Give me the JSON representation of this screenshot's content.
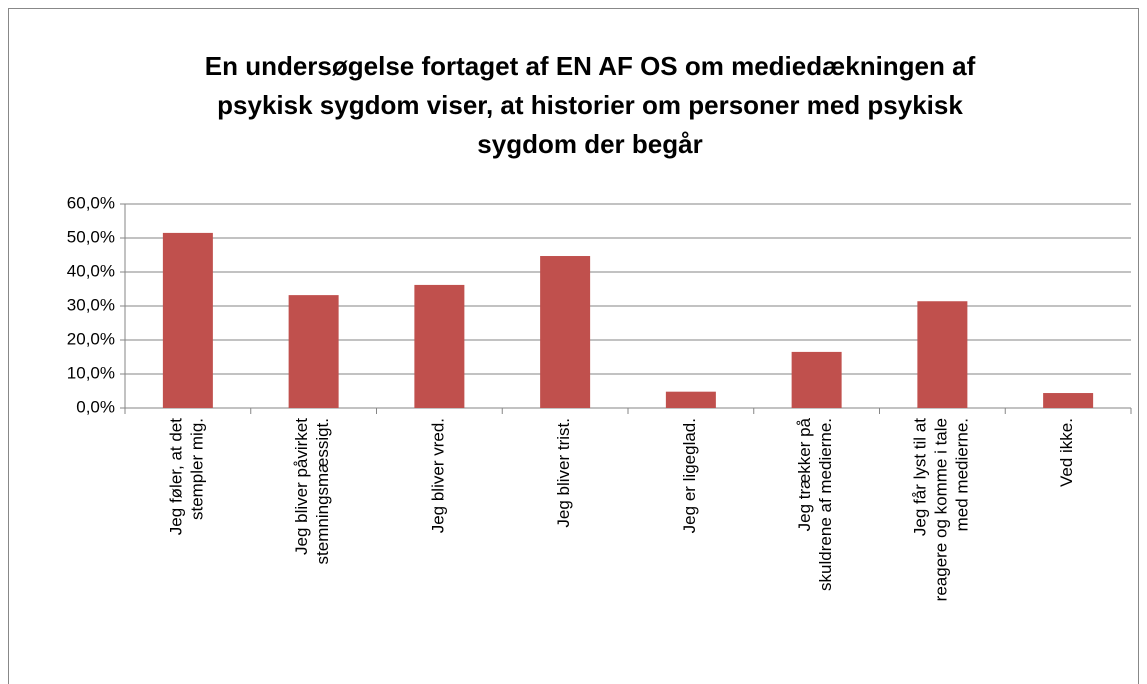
{
  "chart_data": {
    "type": "bar",
    "title": "En undersøgelse fortaget af EN AF OS om mediedækningen af psykisk sygdom viser, at historier om personer med psykisk sygdom der begår",
    "categories": [
      "Jeg føler, at det stempler mig.",
      "Jeg bliver påvirket stemningsmæssigt.",
      "Jeg bliver vred.",
      "Jeg bliver trist.",
      "Jeg er ligeglad.",
      "Jeg trækker på skuldrene af medierne.",
      "Jeg får lyst til at reagere og komme i tale med medierne.",
      "Ved ikke."
    ],
    "values": [
      51.5,
      33.2,
      36.2,
      44.7,
      4.8,
      16.5,
      31.4,
      4.4
    ],
    "color": "#c0504d",
    "ylim": [
      0,
      60
    ],
    "yticks": [
      {
        "value": 0,
        "label": "0,0%"
      },
      {
        "value": 10,
        "label": "10,0%"
      },
      {
        "value": 20,
        "label": "20,0%"
      },
      {
        "value": 30,
        "label": "30,0%"
      },
      {
        "value": 40,
        "label": "40,0%"
      },
      {
        "value": 50,
        "label": "50,0%"
      },
      {
        "value": 60,
        "label": "60,0%"
      }
    ],
    "grid": true
  }
}
